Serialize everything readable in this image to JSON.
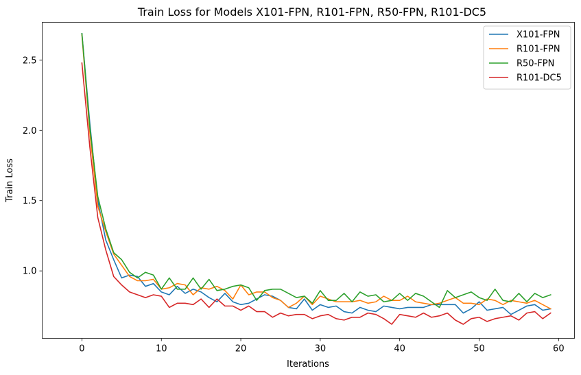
{
  "chart_data": {
    "type": "line",
    "title": "Train Loss for Models X101-FPN, R101-FPN, R50-FPN, R101-DC5",
    "xlabel": "Iterations",
    "ylabel": "Train Loss",
    "xlim": [
      -5,
      62
    ],
    "ylim": [
      0.52,
      2.77
    ],
    "xticks": [
      0,
      10,
      20,
      30,
      40,
      50,
      60
    ],
    "yticks": [
      1.0,
      1.5,
      2.0,
      2.5
    ],
    "ytick_labels": [
      "1.0",
      "1.5",
      "2.0",
      "2.5"
    ],
    "grid": false,
    "legend_position": "upper right",
    "x": [
      0,
      1,
      2,
      3,
      4,
      5,
      6,
      7,
      8,
      9,
      10,
      11,
      12,
      13,
      14,
      15,
      16,
      17,
      18,
      19,
      20,
      21,
      22,
      23,
      24,
      25,
      26,
      27,
      28,
      29,
      30,
      31,
      32,
      33,
      34,
      35,
      36,
      37,
      38,
      39,
      40,
      41,
      42,
      43,
      44,
      45,
      46,
      47,
      48,
      49,
      50,
      51,
      52,
      53,
      54,
      55,
      56,
      57,
      58,
      59
    ],
    "series": [
      {
        "name": "X101-FPN",
        "color": "#1f77b4",
        "values": [
          2.69,
          2.05,
          1.5,
          1.22,
          1.08,
          0.95,
          0.97,
          0.96,
          0.89,
          0.91,
          0.85,
          0.83,
          0.89,
          0.84,
          0.87,
          0.85,
          0.81,
          0.78,
          0.84,
          0.78,
          0.76,
          0.77,
          0.8,
          0.83,
          0.82,
          0.79,
          0.74,
          0.73,
          0.8,
          0.72,
          0.76,
          0.74,
          0.75,
          0.71,
          0.7,
          0.74,
          0.72,
          0.71,
          0.75,
          0.74,
          0.73,
          0.74,
          0.74,
          0.74,
          0.76,
          0.76,
          0.76,
          0.76,
          0.7,
          0.73,
          0.78,
          0.72,
          0.73,
          0.74,
          0.69,
          0.72,
          0.75,
          0.76,
          0.72,
          0.73
        ]
      },
      {
        "name": "R101-FPN",
        "color": "#ff7f0e",
        "values": [
          2.68,
          1.98,
          1.46,
          1.28,
          1.12,
          1.04,
          0.96,
          0.93,
          0.93,
          0.94,
          0.87,
          0.88,
          0.91,
          0.9,
          0.83,
          0.88,
          0.87,
          0.89,
          0.86,
          0.8,
          0.9,
          0.83,
          0.85,
          0.85,
          0.81,
          0.79,
          0.74,
          0.77,
          0.82,
          0.76,
          0.82,
          0.8,
          0.78,
          0.78,
          0.78,
          0.79,
          0.77,
          0.78,
          0.82,
          0.79,
          0.79,
          0.82,
          0.78,
          0.77,
          0.76,
          0.77,
          0.79,
          0.81,
          0.77,
          0.77,
          0.76,
          0.8,
          0.79,
          0.76,
          0.79,
          0.78,
          0.77,
          0.79,
          0.76,
          0.73
        ]
      },
      {
        "name": "R50-FPN",
        "color": "#2ca02c",
        "values": [
          2.69,
          2.02,
          1.53,
          1.3,
          1.13,
          1.08,
          0.99,
          0.95,
          0.99,
          0.97,
          0.87,
          0.95,
          0.87,
          0.87,
          0.95,
          0.87,
          0.94,
          0.86,
          0.87,
          0.89,
          0.9,
          0.88,
          0.79,
          0.86,
          0.87,
          0.87,
          0.84,
          0.81,
          0.82,
          0.77,
          0.86,
          0.79,
          0.79,
          0.84,
          0.78,
          0.85,
          0.82,
          0.83,
          0.78,
          0.79,
          0.84,
          0.79,
          0.84,
          0.82,
          0.78,
          0.74,
          0.86,
          0.81,
          0.83,
          0.85,
          0.81,
          0.79,
          0.87,
          0.79,
          0.78,
          0.84,
          0.78,
          0.84,
          0.81,
          0.83
        ]
      },
      {
        "name": "R101-DC5",
        "color": "#d62728",
        "values": [
          2.48,
          1.88,
          1.38,
          1.15,
          0.96,
          0.9,
          0.85,
          0.83,
          0.81,
          0.83,
          0.82,
          0.74,
          0.77,
          0.77,
          0.76,
          0.8,
          0.74,
          0.8,
          0.75,
          0.75,
          0.72,
          0.75,
          0.71,
          0.71,
          0.67,
          0.7,
          0.68,
          0.69,
          0.69,
          0.66,
          0.68,
          0.69,
          0.66,
          0.65,
          0.67,
          0.67,
          0.7,
          0.69,
          0.66,
          0.62,
          0.69,
          0.68,
          0.67,
          0.7,
          0.67,
          0.68,
          0.7,
          0.65,
          0.62,
          0.66,
          0.67,
          0.64,
          0.66,
          0.67,
          0.68,
          0.65,
          0.7,
          0.71,
          0.66,
          0.7
        ]
      }
    ]
  }
}
